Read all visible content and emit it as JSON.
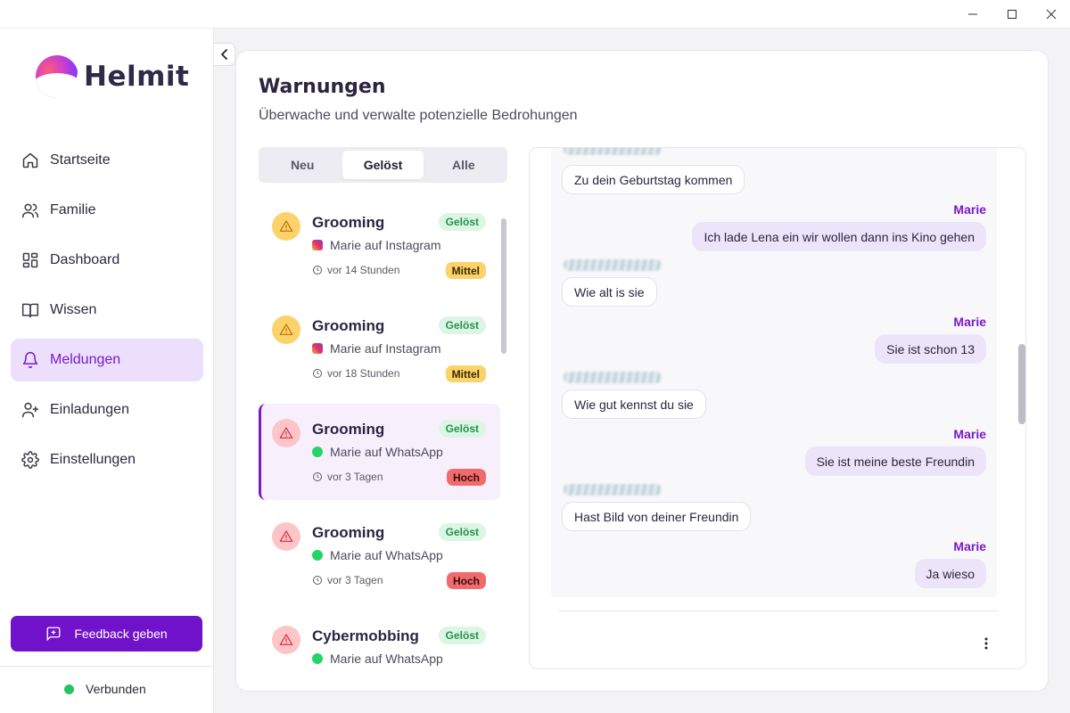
{
  "app": {
    "name": "Helmit"
  },
  "nav": {
    "items": [
      {
        "label": "Startseite",
        "icon": "home-icon"
      },
      {
        "label": "Familie",
        "icon": "users-icon"
      },
      {
        "label": "Dashboard",
        "icon": "dashboard-icon"
      },
      {
        "label": "Wissen",
        "icon": "book-icon"
      },
      {
        "label": "Meldungen",
        "icon": "bell-icon",
        "active": true
      },
      {
        "label": "Einladungen",
        "icon": "user-plus-icon"
      },
      {
        "label": "Einstellungen",
        "icon": "gear-icon"
      }
    ]
  },
  "sidebar": {
    "feedback_label": "Feedback geben",
    "status_label": "Verbunden",
    "status_color": "#22c55e"
  },
  "page": {
    "title": "Warnungen",
    "subtitle": "Überwache und verwalte potenzielle Bedrohungen"
  },
  "tabs": [
    {
      "label": "Neu"
    },
    {
      "label": "Gelöst",
      "active": true
    },
    {
      "label": "Alle"
    }
  ],
  "alerts": [
    {
      "title": "Grooming",
      "status": "Gelöst",
      "source": "Marie auf Instagram",
      "source_icon": "instagram-icon",
      "time": "vor 14 Stunden",
      "severity": "Mittel"
    },
    {
      "title": "Grooming",
      "status": "Gelöst",
      "source": "Marie auf Instagram",
      "source_icon": "instagram-icon",
      "time": "vor 18 Stunden",
      "severity": "Mittel"
    },
    {
      "title": "Grooming",
      "status": "Gelöst",
      "source": "Marie auf WhatsApp",
      "source_icon": "whatsapp-icon",
      "time": "vor 3 Tagen",
      "severity": "Hoch",
      "active": true
    },
    {
      "title": "Grooming",
      "status": "Gelöst",
      "source": "Marie auf WhatsApp",
      "source_icon": "whatsapp-icon",
      "time": "vor 3 Tagen",
      "severity": "Hoch"
    },
    {
      "title": "Cybermobbing",
      "status": "Gelöst",
      "source": "Marie auf WhatsApp",
      "source_icon": "whatsapp-icon",
      "time": "",
      "severity": ""
    }
  ],
  "chat": {
    "messages": [
      {
        "from": "other",
        "text": "Zu dein Geburtstag kommen"
      },
      {
        "from": "me",
        "sender": "Marie",
        "text": "Ich lade Lena ein wir wollen dann ins Kino gehen"
      },
      {
        "from": "other",
        "text": "Wie alt is sie"
      },
      {
        "from": "me",
        "sender": "Marie",
        "text": "Sie ist schon 13"
      },
      {
        "from": "other",
        "text": "Wie gut kennst du sie"
      },
      {
        "from": "me",
        "sender": "Marie",
        "text": "Sie ist meine beste Freundin"
      },
      {
        "from": "other",
        "text": "Hast Bild von deiner Freundin"
      },
      {
        "from": "me",
        "sender": "Marie",
        "text": "Ja wieso"
      }
    ]
  },
  "colors": {
    "accent": "#7012c9",
    "active_nav_bg": "#ecdffb",
    "medium": "#fcd36a",
    "high": "#f16b6d",
    "resolved_badge_bg": "#dcf5e4"
  }
}
